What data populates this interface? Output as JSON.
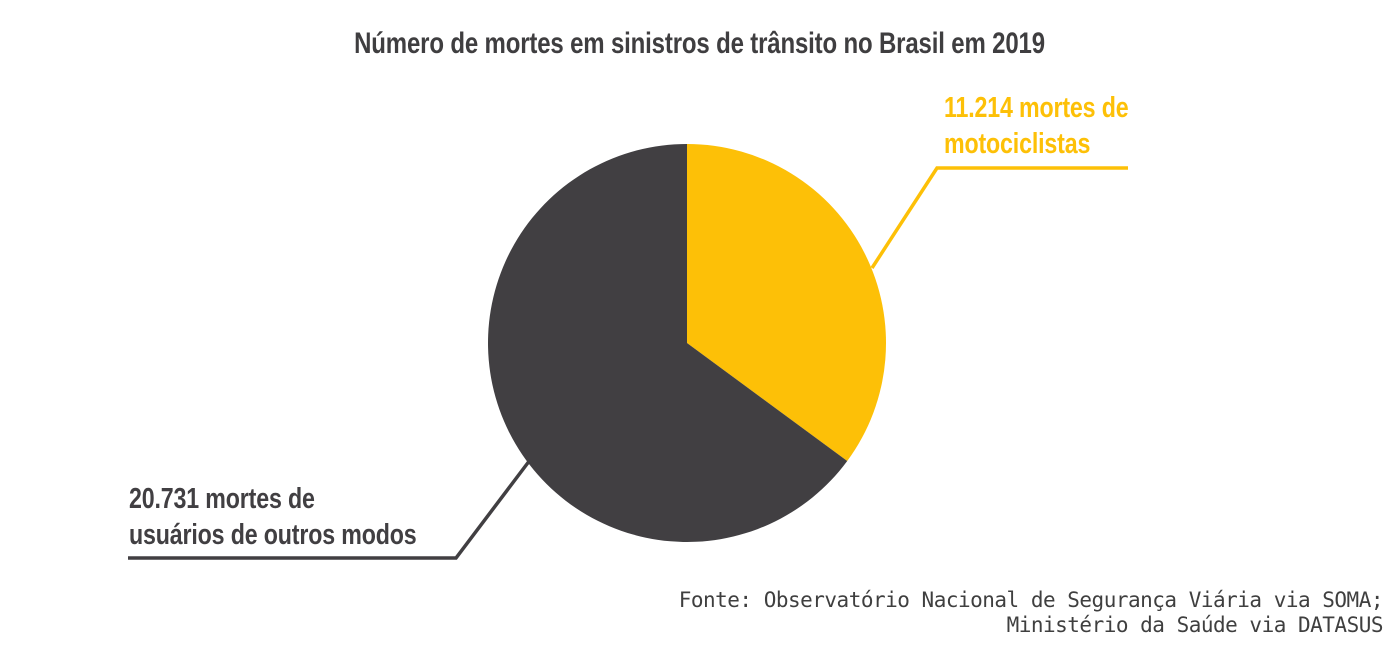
{
  "chart_data": {
    "type": "pie",
    "title": "Número de mortes em sinistros de trânsito no Brasil em 2019",
    "categories": [
      "motociclistas",
      "usuários de outros modos"
    ],
    "values": [
      11214,
      20731
    ],
    "colors": [
      "#fdc007",
      "#413f42"
    ],
    "labels": [
      "11.214 mortes de\nmotociclistas",
      "20.731 mortes de\nusuários de outros modos"
    ],
    "start_angle_deg": 0,
    "direction": "clockwise",
    "legend": "none",
    "grid": false,
    "source": "Fonte: Observatório Nacional de Segurança Viária via SOMA;\nMinistério da Saúde via DATASUS"
  }
}
